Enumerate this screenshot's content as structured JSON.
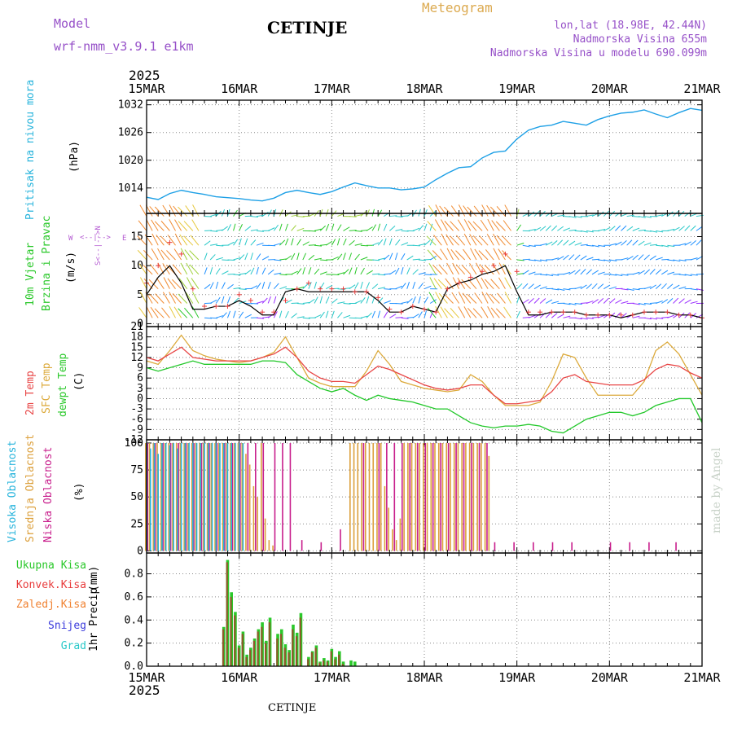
{
  "header": {
    "model_label": "Model",
    "model_name": "wrf-nmm_v3.9.1  e1km",
    "station": "CETINJE",
    "product": "Meteogram",
    "coords": "lon,lat (18.98E, 42.44N)",
    "elevation": "Nadmorska Visina 655m",
    "model_elevation": "Nadmorska Visina u modelu 690.099m",
    "footer_station": "CETINJE",
    "credit": "made by Angel",
    "year_top": "2025",
    "year_bottom": "2025"
  },
  "colors": {
    "pressure": "#1ea0e6",
    "temp2m": "#e84646",
    "sfctemp": "#dcaa3c",
    "dewpt": "#22c82a",
    "high_cloud": "#28b4dc",
    "mid_cloud": "#dca03c",
    "low_cloud": "#c81e8c",
    "total_precip": "#2ac82a",
    "conv_precip": "#e83c3c",
    "frz_precip": "#f08232",
    "snow": "#3c3cdc",
    "graupel": "#28c8c8",
    "model_label": "#9650c8",
    "title_orange": "#dcaa50",
    "credit": "#c8d2c8",
    "wind_label": "#2ac82a",
    "compass": "#b45ad2"
  },
  "panels": {
    "pressure": {
      "label": "Pritisak na nivou mora",
      "unit": "(hPa)"
    },
    "wind": {
      "label1": "10m Vjetar",
      "label2": "Brzina i Pravac",
      "unit": "(m/s)"
    },
    "compass": {
      "n": "N",
      "s": "S",
      "e": "E",
      "w": "W",
      "ns_glyph": "<--|-->",
      "ew_glyph": "<--|-->"
    },
    "temp": {
      "label1": "2m Temp",
      "label2": "SFC Temp",
      "label3": "dewpt Temp",
      "unit": "(C)"
    },
    "cloud": {
      "label1": "Visoka Oblacnost",
      "label2": "Srednja Oblacnost",
      "label3": "Niska Oblacnost",
      "unit": "(%)"
    },
    "precip": {
      "label": "1hr Precip",
      "unit": "(mm)",
      "legend": [
        "Ukupna Kisa",
        "Konvek.Kisa",
        "Zaledj.Kisa",
        "Snijeg",
        "Grad"
      ]
    }
  },
  "chart_data": {
    "type": "line",
    "x_axis": {
      "unit": "hours since 15MAR 2025 00Z",
      "range": [
        0,
        144
      ],
      "ticks": [
        0,
        24,
        48,
        72,
        96,
        120,
        144
      ],
      "tick_labels": [
        "15MAR",
        "16MAR",
        "17MAR",
        "18MAR",
        "19MAR",
        "20MAR",
        "21MAR"
      ]
    },
    "pressure": {
      "ylim": [
        1008.5,
        1033
      ],
      "yticks": [
        1014,
        1020,
        1026,
        1032
      ],
      "x": [
        0,
        3,
        6,
        9,
        12,
        15,
        18,
        21,
        24,
        27,
        30,
        33,
        36,
        39,
        42,
        45,
        48,
        51,
        54,
        57,
        60,
        63,
        66,
        69,
        72,
        75,
        78,
        81,
        84,
        87,
        90,
        93,
        96,
        99,
        102,
        105,
        108,
        111,
        114,
        117,
        120,
        123,
        126,
        129,
        132,
        135,
        138,
        141,
        144
      ],
      "values": [
        1012.0,
        1011.5,
        1012.8,
        1013.5,
        1013.0,
        1012.6,
        1012.1,
        1011.9,
        1011.7,
        1011.4,
        1011.2,
        1011.8,
        1013.0,
        1013.5,
        1013.0,
        1012.6,
        1013.2,
        1014.2,
        1015.1,
        1014.5,
        1014.0,
        1014.0,
        1013.6,
        1013.8,
        1014.2,
        1015.8,
        1017.2,
        1018.4,
        1018.6,
        1020.5,
        1021.7,
        1022.0,
        1024.6,
        1026.5,
        1027.3,
        1027.6,
        1028.4,
        1028.0,
        1027.6,
        1028.8,
        1029.6,
        1030.2,
        1030.4,
        1030.9,
        1030.0,
        1029.2,
        1030.3,
        1031.2,
        1030.8
      ]
    },
    "wind": {
      "ylim": [
        -0.5,
        19
      ],
      "yticks": [
        0,
        5,
        10,
        15
      ],
      "x": [
        0,
        3,
        6,
        9,
        12,
        15,
        18,
        21,
        24,
        27,
        30,
        33,
        36,
        39,
        42,
        45,
        48,
        51,
        54,
        57,
        60,
        63,
        66,
        69,
        72,
        75,
        78,
        81,
        84,
        87,
        90,
        93,
        96,
        99,
        102,
        105,
        108,
        111,
        114,
        117,
        120,
        123,
        126,
        129,
        132,
        135,
        138,
        141,
        144
      ],
      "speed": [
        5,
        8,
        10,
        7,
        2.5,
        2.5,
        3,
        3,
        4,
        3,
        1.5,
        1.5,
        5.5,
        6,
        5.5,
        5.5,
        5.5,
        5.5,
        5.5,
        5.5,
        4,
        2,
        2,
        3,
        2.5,
        2,
        6,
        7,
        7.5,
        8.5,
        9,
        10,
        5.5,
        1.5,
        1.5,
        2,
        2,
        2,
        1.5,
        1.5,
        1.5,
        1,
        1.5,
        2,
        2,
        2,
        1.5,
        1.5,
        1
      ],
      "gust": [
        7,
        10,
        14,
        12,
        6,
        3,
        3,
        3,
        5,
        4,
        2,
        2,
        4,
        6,
        7,
        6,
        6,
        6,
        5.5,
        5.5,
        4.5,
        2.5,
        2,
        3,
        2.5,
        2,
        6,
        7,
        8,
        9,
        10,
        12,
        9,
        2,
        2,
        2,
        2,
        2,
        1.5,
        1.5,
        1.5,
        1.5,
        1.5,
        2,
        2,
        2,
        1.5,
        1.5,
        1
      ]
    },
    "temperature": {
      "ylim": [
        -12,
        21
      ],
      "yticks": [
        -12,
        -9,
        -6,
        -3,
        0,
        3,
        6,
        9,
        12,
        15,
        18,
        21
      ],
      "x": [
        0,
        3,
        6,
        9,
        12,
        15,
        18,
        21,
        24,
        27,
        30,
        33,
        36,
        39,
        42,
        45,
        48,
        51,
        54,
        57,
        60,
        63,
        66,
        69,
        72,
        75,
        78,
        81,
        84,
        87,
        90,
        93,
        96,
        99,
        102,
        105,
        108,
        111,
        114,
        117,
        120,
        123,
        126,
        129,
        132,
        135,
        138,
        141,
        144
      ],
      "temp2m": [
        12,
        11,
        13,
        15,
        12,
        11.5,
        11,
        11,
        11,
        11,
        12,
        13,
        15,
        12,
        8,
        6,
        5,
        5,
        4.5,
        7,
        9.5,
        8.5,
        7,
        5.5,
        4,
        3,
        2.5,
        3,
        4,
        4,
        1,
        -1.5,
        -1.5,
        -1,
        -0.5,
        2,
        6,
        7,
        5,
        4.5,
        4,
        4,
        4,
        5.5,
        8.5,
        10,
        9.5,
        7.5,
        6
      ],
      "sfctemp": [
        11,
        10,
        14,
        18.5,
        14,
        12.5,
        11.5,
        11,
        10.5,
        11,
        12,
        13.5,
        18,
        12,
        6,
        4.5,
        3.5,
        3.5,
        3.5,
        8,
        14,
        10,
        5,
        4,
        3,
        2.5,
        2,
        2.5,
        7,
        5,
        1,
        -2,
        -2,
        -2,
        -1,
        5,
        13,
        12,
        6,
        1,
        1,
        1,
        1,
        5,
        14,
        16.5,
        13,
        7,
        1
      ]
    },
    "dewpoint": {
      "x": [
        0,
        3,
        6,
        9,
        12,
        15,
        18,
        21,
        24,
        27,
        30,
        33,
        36,
        39,
        42,
        45,
        48,
        51,
        54,
        57,
        60,
        63,
        66,
        69,
        72,
        75,
        78,
        81,
        84,
        87,
        90,
        93,
        96,
        99,
        102,
        105,
        108,
        111,
        114,
        117,
        120,
        123,
        126,
        129,
        132,
        135,
        138,
        141,
        144
      ],
      "values": [
        9,
        8,
        9,
        10,
        11,
        10,
        10,
        10,
        10,
        10,
        11,
        11,
        10.5,
        7,
        5,
        3,
        2,
        3,
        1,
        -0.5,
        1,
        0,
        -0.5,
        -1,
        -2,
        -3,
        -3,
        -5,
        -7,
        -8,
        -8.5,
        -8,
        -8,
        -7.5,
        -8,
        -9.5,
        -10,
        -8,
        -6,
        -5,
        -4,
        -4,
        -5,
        -4,
        -2,
        -1,
        0,
        0,
        -7
      ]
    },
    "cloud": {
      "ylim": [
        -2,
        103
      ],
      "yticks": [
        0,
        25,
        50,
        75,
        100
      ],
      "high": {
        "x": [
          0,
          1,
          2,
          3,
          4,
          5,
          6,
          7,
          8,
          9,
          10,
          11,
          12,
          13,
          14,
          15,
          16,
          17,
          18,
          19,
          20,
          21,
          22,
          23,
          24,
          25
        ],
        "values": [
          100,
          95,
          100,
          90,
          100,
          100,
          98,
          100,
          95,
          100,
          100,
          100,
          100,
          100,
          100,
          100,
          100,
          100,
          100,
          100,
          100,
          100,
          100,
          100,
          100,
          100
        ]
      },
      "mid": {
        "x": [
          0,
          1,
          2,
          3,
          4,
          5,
          6,
          7,
          8,
          9,
          10,
          11,
          12,
          13,
          14,
          15,
          16,
          17,
          18,
          19,
          20,
          21,
          22,
          23,
          24,
          25,
          26,
          27,
          28,
          29,
          30,
          31,
          32,
          33,
          34,
          53,
          54,
          55,
          56,
          57,
          58,
          59,
          60,
          61,
          62,
          63,
          64,
          65,
          66,
          67,
          68,
          69,
          70,
          71,
          72,
          73,
          74,
          75,
          76,
          77,
          78,
          79,
          80,
          81,
          82,
          83,
          84,
          85,
          86,
          87,
          88,
          89
        ],
        "values": [
          100,
          100,
          100,
          100,
          100,
          100,
          100,
          100,
          100,
          100,
          100,
          100,
          100,
          100,
          100,
          100,
          100,
          100,
          100,
          100,
          100,
          100,
          100,
          100,
          100,
          100,
          90,
          80,
          60,
          50,
          100,
          30,
          10,
          5,
          0,
          100,
          100,
          100,
          100,
          100,
          100,
          100,
          100,
          100,
          60,
          40,
          20,
          10,
          30,
          100,
          100,
          100,
          100,
          100,
          100,
          100,
          100,
          100,
          100,
          100,
          100,
          100,
          100,
          100,
          100,
          100,
          100,
          100,
          100,
          100,
          100,
          88
        ]
      },
      "low": {
        "x": [
          0,
          2,
          4,
          6,
          8,
          10,
          12,
          14,
          16,
          18,
          20,
          22,
          24,
          26,
          28,
          30,
          33,
          35,
          37,
          40,
          45,
          50,
          56,
          60,
          62,
          64,
          66,
          68,
          70,
          72,
          74,
          76,
          78,
          80,
          82,
          84,
          86,
          88,
          90,
          95,
          100,
          105,
          110,
          120,
          125,
          130,
          137
        ],
        "values": [
          100,
          100,
          100,
          100,
          100,
          100,
          100,
          100,
          100,
          100,
          100,
          100,
          100,
          100,
          100,
          100,
          100,
          100,
          100,
          10,
          8,
          20,
          100,
          100,
          100,
          100,
          100,
          100,
          100,
          100,
          100,
          100,
          100,
          100,
          100,
          100,
          100,
          100,
          8,
          8,
          8,
          8,
          8,
          8,
          8,
          8,
          8
        ]
      }
    },
    "precip": {
      "ylim": [
        0,
        0.98
      ],
      "yticks": [
        0,
        0.2,
        0.4,
        0.6,
        0.8
      ],
      "x": [
        20,
        21,
        22,
        23,
        24,
        25,
        26,
        27,
        28,
        29,
        30,
        31,
        32,
        34,
        35,
        36,
        37,
        38,
        39,
        40,
        42,
        43,
        44,
        45,
        46,
        47,
        48,
        49,
        50,
        51,
        53,
        54
      ],
      "total": [
        0.34,
        0.92,
        0.64,
        0.47,
        0.18,
        0.3,
        0.1,
        0.16,
        0.24,
        0.32,
        0.38,
        0.22,
        0.42,
        0.28,
        0.32,
        0.19,
        0.14,
        0.36,
        0.29,
        0.46,
        0.08,
        0.13,
        0.18,
        0.04,
        0.07,
        0.05,
        0.15,
        0.08,
        0.13,
        0.04,
        0.05,
        0.04
      ],
      "conv": [
        0.32,
        0.9,
        0.6,
        0.44,
        0.16,
        0.28,
        0.08,
        0.14,
        0.22,
        0.3,
        0.34,
        0.2,
        0.38,
        0.24,
        0.28,
        0.16,
        0.12,
        0.32,
        0.26,
        0.42,
        0.06,
        0.12,
        0.16,
        0.03,
        0.05,
        0.04,
        0.13,
        0.06,
        0.1,
        0.02,
        0.0,
        0.0
      ]
    }
  }
}
